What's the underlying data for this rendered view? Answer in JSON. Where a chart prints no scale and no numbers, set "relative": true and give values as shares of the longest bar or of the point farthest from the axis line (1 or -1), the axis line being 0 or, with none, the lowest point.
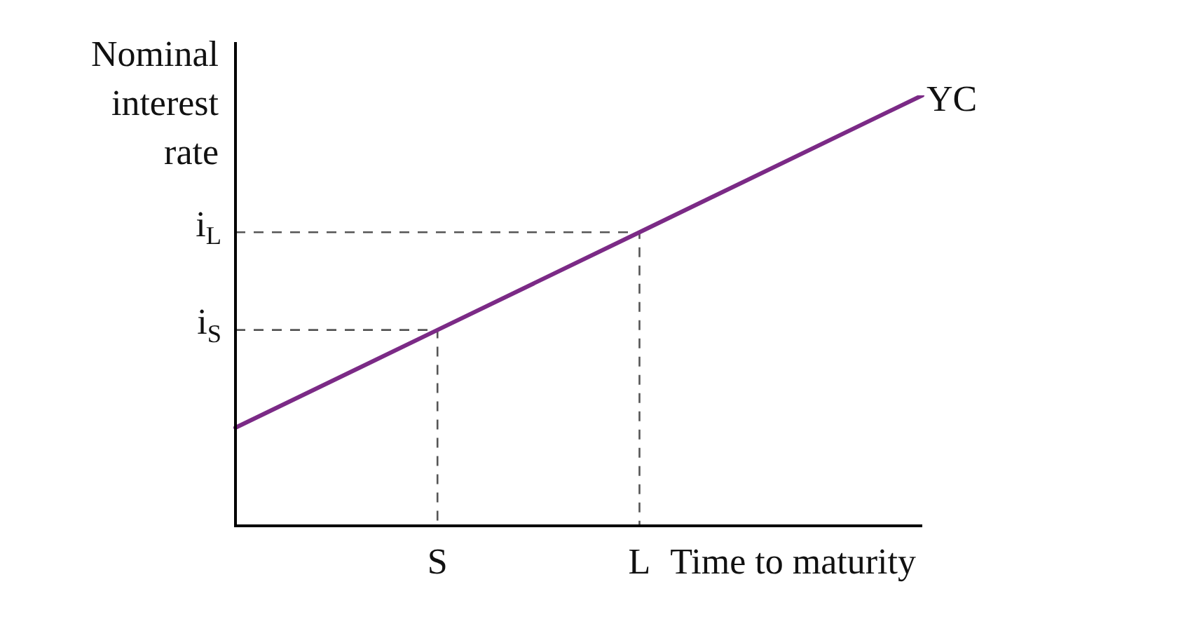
{
  "chart_data": {
    "type": "line",
    "relative": true,
    "xlabel": "Time to maturity",
    "ylabel": "Nominal interest rate",
    "categories": [
      null,
      null,
      null,
      null,
      null,
      "S",
      null,
      null,
      null,
      null,
      "L",
      null,
      null,
      null,
      null,
      null,
      null,
      null
    ],
    "series": [
      {
        "name": "YC",
        "color": "#7b2a86",
        "values": [
          0.228,
          null,
          null,
          null,
          null,
          0.455,
          null,
          null,
          null,
          null,
          0.682,
          null,
          null,
          null,
          null,
          null,
          null,
          1
        ]
      }
    ],
    "annotations": [
      "i$_{S}$",
      "i$_{L}$"
    ],
    "grid": false,
    "legend": false,
    "marker": "none",
    "line_style": "solid"
  }
}
